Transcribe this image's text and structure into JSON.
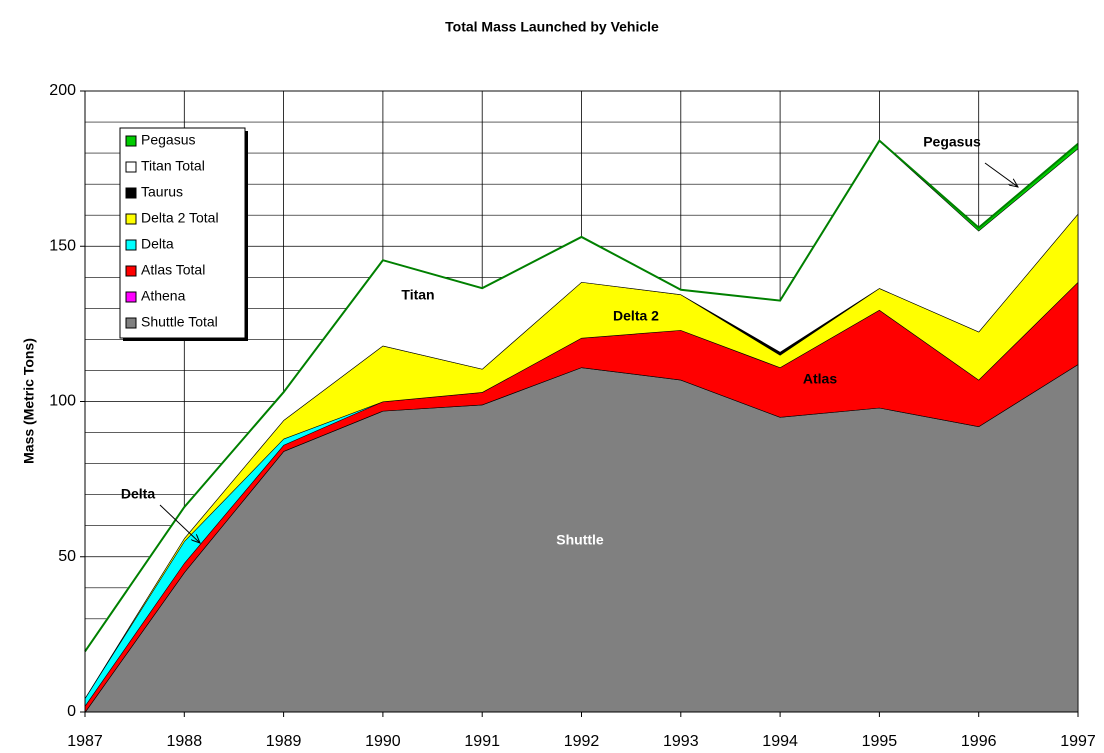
{
  "chart_data": {
    "type": "stacked_area",
    "title": "Total Mass Launched by Vehicle",
    "y_label": "Mass (Metric Tons)",
    "x": [
      1987,
      1988,
      1989,
      1990,
      1991,
      1992,
      1993,
      1994,
      1995,
      1996,
      1997
    ],
    "xlim": [
      1987,
      1997
    ],
    "xticks": [
      1987,
      1988,
      1989,
      1990,
      1991,
      1992,
      1993,
      1994,
      1995,
      1996,
      1997
    ],
    "ylim": [
      0,
      200
    ],
    "yticks": [
      0,
      50,
      100,
      150,
      200
    ],
    "minor_yticks": [
      10,
      20,
      30,
      40,
      60,
      70,
      80,
      90,
      110,
      120,
      130,
      140,
      160,
      170,
      180,
      190
    ],
    "grid": true,
    "legend": "upper left",
    "series": [
      {
        "name": "Shuttle Total",
        "color": "#808080",
        "values": [
          0,
          45,
          84,
          97,
          99,
          111,
          107,
          95,
          98,
          92,
          112
        ]
      },
      {
        "name": "Athena",
        "color": "#ff00ff",
        "values": [
          0,
          0,
          0,
          0,
          0,
          0,
          0,
          0,
          0,
          0,
          0
        ]
      },
      {
        "name": "Atlas Total",
        "color": "#ff0000",
        "values": [
          2,
          3,
          2,
          3,
          4,
          9.5,
          16,
          16,
          31.5,
          15,
          26.5
        ]
      },
      {
        "name": "Delta",
        "color": "#00ffff",
        "values": [
          2.5,
          7,
          2,
          0,
          0,
          0,
          0,
          0,
          0,
          0,
          0
        ]
      },
      {
        "name": "Delta 2 Total",
        "color": "#ffff00",
        "values": [
          0,
          1,
          6,
          18,
          7.5,
          18,
          11.5,
          4,
          7,
          15.5,
          22
        ]
      },
      {
        "name": "Taurus",
        "color": "#000000",
        "values": [
          0,
          0,
          0,
          0,
          0,
          0,
          0,
          1,
          0,
          0,
          0
        ]
      },
      {
        "name": "Titan Total",
        "color": "#ffffff",
        "values": [
          15,
          10,
          9,
          27.5,
          26,
          14.5,
          1.5,
          16.5,
          47.5,
          32.5,
          21
        ]
      },
      {
        "name": "Pegasus",
        "color": "#00cc00",
        "values": [
          0,
          0,
          0,
          0,
          0,
          0,
          0,
          0,
          0,
          1,
          1.5
        ]
      }
    ],
    "annotations": [
      "Shuttle",
      "Atlas",
      "Delta 2",
      "Titan",
      "Delta",
      "Pegasus"
    ]
  }
}
